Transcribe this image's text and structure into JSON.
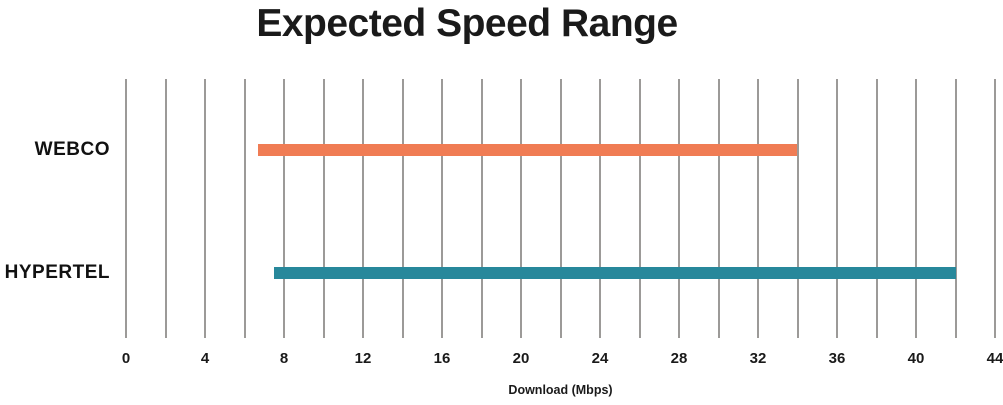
{
  "page": {
    "background": "#ffffff"
  },
  "chart_data": {
    "type": "bar",
    "subtype": "horizontal-range-bars",
    "title": "Expected Speed Range",
    "xlabel": "Download (Mbps)",
    "ylabel": "",
    "xlim": [
      0,
      44
    ],
    "gridline_step": 2,
    "grid": true,
    "legend": false,
    "x_tick_labels": [
      0,
      4,
      8,
      12,
      16,
      20,
      24,
      28,
      32,
      36,
      40,
      44
    ],
    "categories": [
      "WEBCO",
      "HYPERTEL"
    ],
    "series": [
      {
        "name": "WEBCO",
        "range_mbps": [
          6.7,
          34
        ],
        "color": "#f07c54"
      },
      {
        "name": "HYPERTEL",
        "range_mbps": [
          7.5,
          42
        ],
        "color": "#28889b"
      }
    ],
    "colors": {
      "gridline": "#9c9a98",
      "text": "#1a1a1a",
      "webco_bar": "#f07c54",
      "hypertel_bar": "#28889b"
    }
  }
}
